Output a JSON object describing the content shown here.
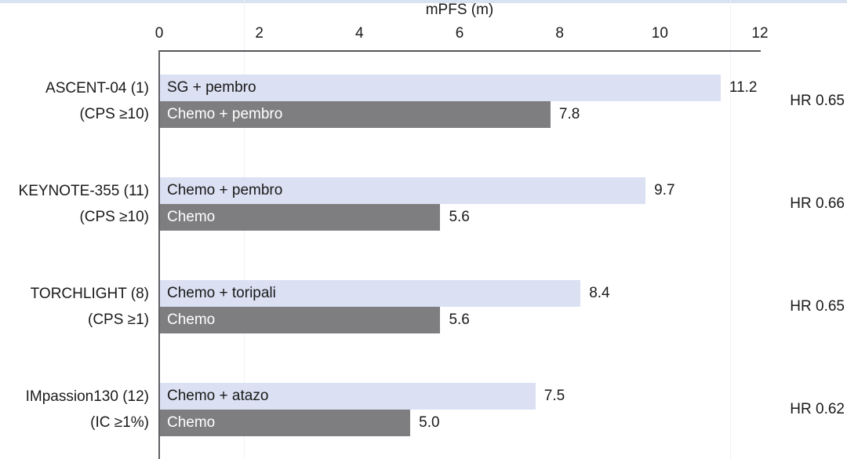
{
  "chart_data": {
    "type": "bar",
    "orientation": "horizontal",
    "title": "mPFS (m)",
    "xlabel": "mPFS (m)",
    "xlim": [
      0,
      12
    ],
    "xticks": [
      "0",
      "2",
      "4",
      "6",
      "8",
      "10",
      "12"
    ],
    "grid": "off",
    "legend": "none (arm names written inside bars)",
    "colors": {
      "experimental_bar": "#dbe0f2",
      "control_bar": "#7e7e80",
      "axis": "#55565a",
      "top_strip": "#d9e2f1"
    },
    "groups": [
      {
        "trial": "ASCENT-04 (1)",
        "subgroup": "(CPS ≥10)",
        "hr": "HR 0.65",
        "bars": [
          {
            "label": "SG + pembro",
            "value": 11.2,
            "value_label": "11.2",
            "series": "experimental"
          },
          {
            "label": "Chemo + pembro",
            "value": 7.8,
            "value_label": "7.8",
            "series": "control"
          }
        ]
      },
      {
        "trial": "KEYNOTE-355 (11)",
        "subgroup": "(CPS ≥10)",
        "hr": "HR 0.66",
        "bars": [
          {
            "label": "Chemo + pembro",
            "value": 9.7,
            "value_label": "9.7",
            "series": "experimental"
          },
          {
            "label": "Chemo",
            "value": 5.6,
            "value_label": "5.6",
            "series": "control"
          }
        ]
      },
      {
        "trial": "TORCHLIGHT (8)",
        "subgroup": "(CPS ≥1)",
        "hr": "HR 0.65",
        "bars": [
          {
            "label": "Chemo + toripali",
            "value": 8.4,
            "value_label": "8.4",
            "series": "experimental"
          },
          {
            "label": "Chemo",
            "value": 5.6,
            "value_label": "5.6",
            "series": "control"
          }
        ]
      },
      {
        "trial": "IMpassion130 (12)",
        "subgroup": "(IC ≥1%)",
        "hr": "HR 0.62",
        "bars": [
          {
            "label": "Chemo + atazo",
            "value": 7.5,
            "value_label": "7.5",
            "series": "experimental"
          },
          {
            "label": "Chemo",
            "value": 5.0,
            "value_label": "5.0",
            "series": "control"
          }
        ]
      }
    ]
  }
}
